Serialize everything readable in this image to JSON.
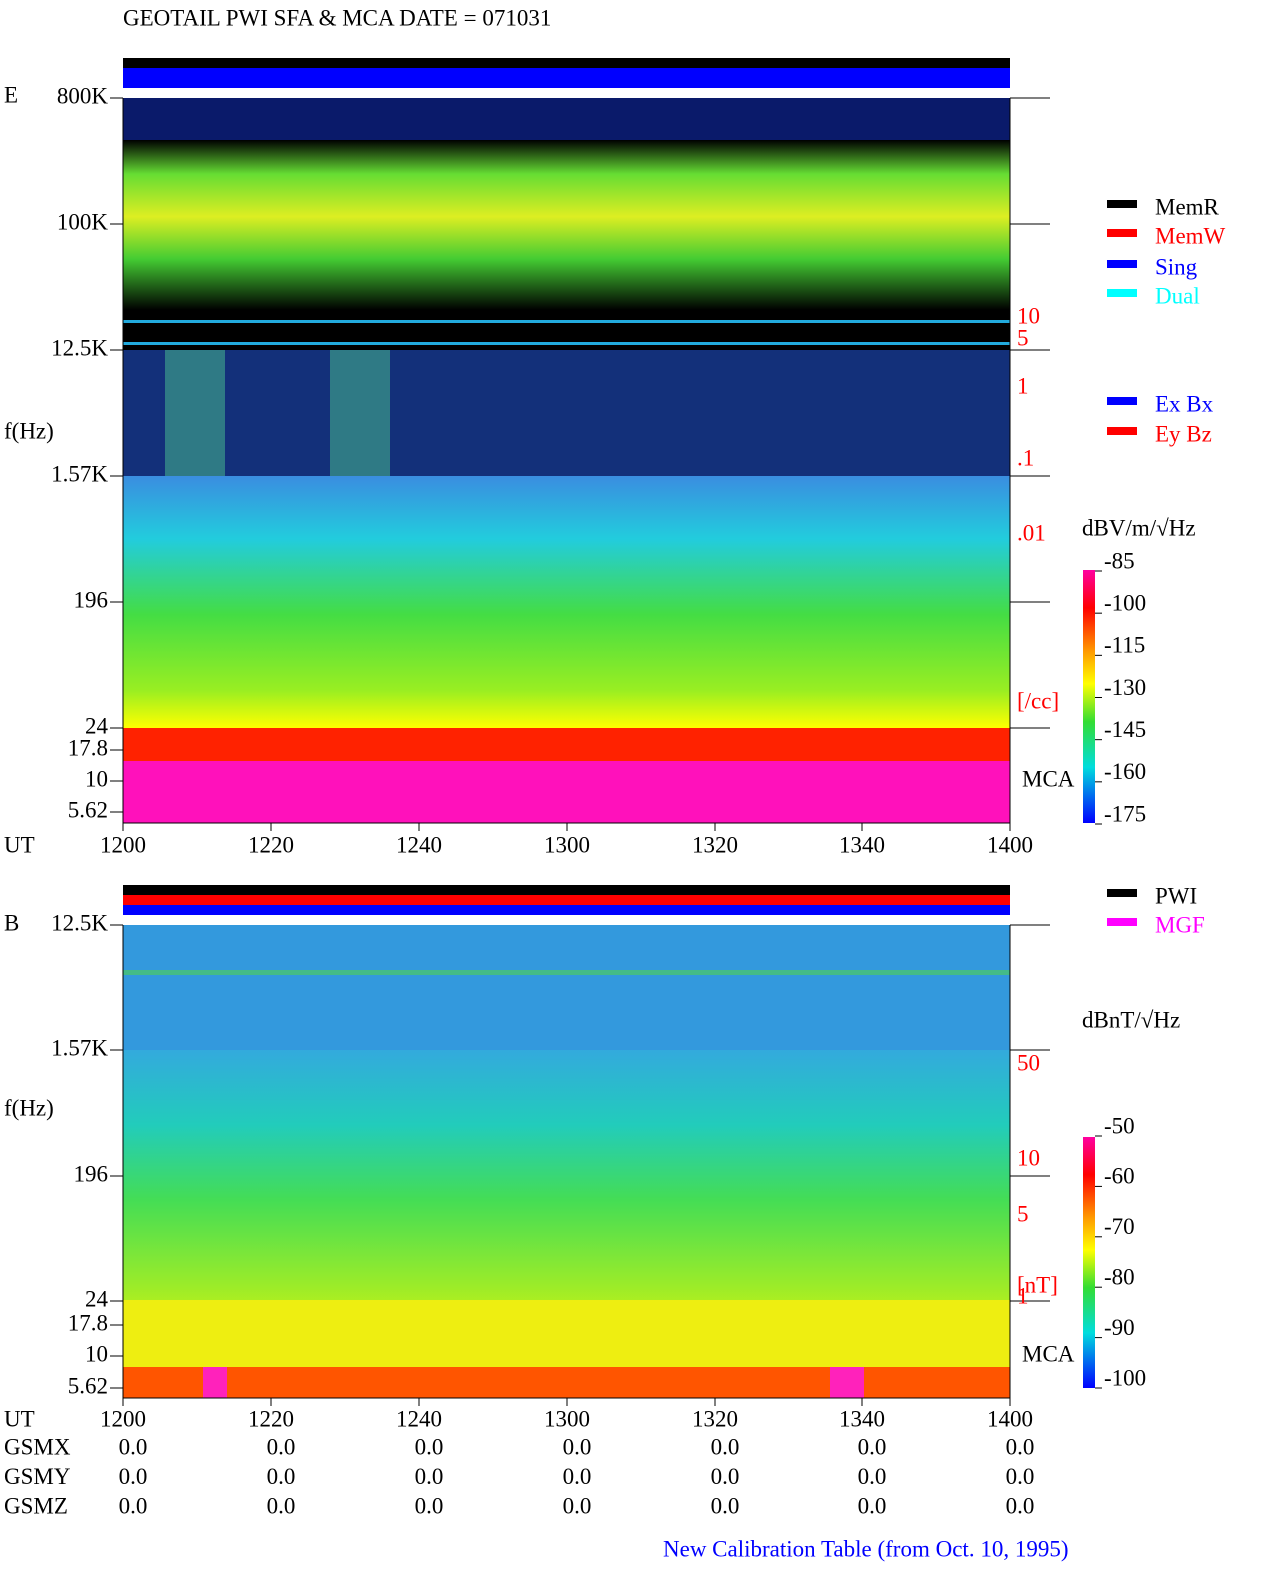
{
  "title": "GEOTAIL  PWI SFA & MCA   DATE = 071031",
  "panels": [
    {
      "label": "E",
      "ylabel": "f(Hz)",
      "xlabel": "UT",
      "yticks": [
        "800K",
        "100K",
        "12.5K",
        "1.57K",
        "196",
        "24",
        "17.8",
        "10",
        "5.62"
      ],
      "xticks": [
        "1200",
        "1220",
        "1240",
        "1300",
        "1320",
        "1340",
        "1400"
      ],
      "right_labels": [
        "10",
        "5",
        "1",
        ".1",
        ".01",
        "[/cc]"
      ],
      "mca": "MCA",
      "legend": [
        {
          "name": "MemR",
          "color": "#000000"
        },
        {
          "name": "MemW",
          "color": "#ff0000"
        },
        {
          "name": "Sing",
          "color": "#0000ff"
        },
        {
          "name": "Dual",
          "color": "#00ffff"
        },
        {
          "name": "Ex Bx",
          "color": "#0000ff"
        },
        {
          "name": "Ey Bz",
          "color": "#ff0000"
        }
      ],
      "colorbar": {
        "unit": "dBV/m/√Hz",
        "ticks": [
          -85,
          -100,
          -115,
          -130,
          -145,
          -160,
          -175
        ]
      }
    },
    {
      "label": "B",
      "ylabel": "f(Hz)",
      "xlabel": "UT",
      "yticks": [
        "12.5K",
        "1.57K",
        "196",
        "24",
        "17.8",
        "10",
        "5.62"
      ],
      "xticks": [
        "1200",
        "1220",
        "1240",
        "1300",
        "1320",
        "1340",
        "1400"
      ],
      "right_labels": [
        "50",
        "10",
        "5",
        "[nT]",
        "1"
      ],
      "mca": "MCA",
      "legend": [
        {
          "name": "PWI",
          "color": "#000000"
        },
        {
          "name": "MGF",
          "color": "#ff00ff"
        }
      ],
      "colorbar": {
        "unit": "dBnT/√Hz",
        "ticks": [
          -50,
          -60,
          -70,
          -80,
          -90,
          -100
        ]
      }
    }
  ],
  "position": {
    "rows": [
      {
        "label": "GSMX",
        "values": [
          "0.0",
          "0.0",
          "0.0",
          "0.0",
          "0.0",
          "0.0",
          "0.0"
        ]
      },
      {
        "label": "GSMY",
        "values": [
          "0.0",
          "0.0",
          "0.0",
          "0.0",
          "0.0",
          "0.0",
          "0.0"
        ]
      },
      {
        "label": "GSMZ",
        "values": [
          "0.0",
          "0.0",
          "0.0",
          "0.0",
          "0.0",
          "0.0",
          "0.0"
        ]
      }
    ]
  },
  "footer": "New Calibration Table (from Oct. 10, 1995)"
}
